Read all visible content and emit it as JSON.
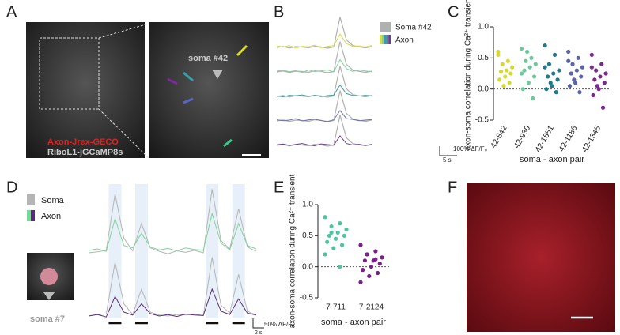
{
  "figure": {
    "panel_labels": [
      "A",
      "B",
      "C",
      "D",
      "E",
      "F"
    ],
    "panel_a": {
      "soma_label": "soma #42",
      "channel_labels": [
        "Axon-Jrex-GECO",
        "RiboL1-jGCaMP8s"
      ]
    },
    "panel_d_image": {
      "soma_label": "soma #7"
    }
  },
  "chart_data": [
    {
      "type": "line",
      "legend": [
        "Soma #42",
        "Axon"
      ],
      "scale_bar_x": "5 s",
      "scale_bar_y": "100% ΔF/F₀",
      "x": [
        0,
        3,
        6,
        9,
        12,
        15,
        18,
        21,
        24,
        27,
        30,
        33,
        36,
        39,
        42,
        45
      ],
      "soma": {
        "color": "#b0b0b0",
        "values": [
          0,
          5,
          -3,
          4,
          2,
          -2,
          6,
          3,
          -4,
          2,
          160,
          40,
          10,
          3,
          -2,
          4
        ]
      },
      "series": [
        {
          "color": "#d4d84a",
          "values": [
            8,
            2,
            10,
            -4,
            6,
            3,
            12,
            -2,
            5,
            9,
            70,
            20,
            6,
            8,
            2,
            10
          ]
        },
        {
          "color": "#7fd49a",
          "values": [
            4,
            9,
            1,
            7,
            -3,
            10,
            2,
            6,
            11,
            0,
            65,
            18,
            3,
            9,
            5,
            1
          ]
        },
        {
          "color": "#3f9c9c",
          "values": [
            2,
            -2,
            6,
            3,
            8,
            1,
            5,
            -1,
            4,
            7,
            60,
            15,
            5,
            2,
            6,
            3
          ]
        },
        {
          "color": "#6a72a8",
          "values": [
            6,
            1,
            4,
            12,
            0,
            5,
            9,
            2,
            -3,
            6,
            55,
            12,
            8,
            1,
            4,
            7
          ]
        },
        {
          "color": "#6b3f8a",
          "values": [
            3,
            7,
            0,
            5,
            10,
            2,
            -2,
            8,
            4,
            1,
            50,
            10,
            2,
            6,
            0,
            5
          ]
        }
      ]
    },
    {
      "type": "strip",
      "ylabel": "axon-soma correlation during Ca²⁺ transient",
      "xlabel": "soma - axon pair",
      "categories": [
        "42-842",
        "42-930",
        "42-1651",
        "42-1186",
        "42-1345"
      ],
      "colors": [
        "#d9d82c",
        "#6cc99a",
        "#1f7a8c",
        "#5a64a8",
        "#7a2a8c"
      ],
      "values": [
        [
          0.55,
          0.45,
          0.4,
          0.35,
          0.3,
          0.28,
          0.25,
          0.2,
          0.15,
          0.1,
          0.05,
          0.6
        ],
        [
          0.65,
          0.5,
          0.45,
          0.4,
          0.35,
          0.3,
          0.2,
          0.1,
          0.0,
          -0.15,
          0.6,
          0.25
        ],
        [
          0.7,
          0.55,
          0.4,
          0.3,
          0.25,
          0.2,
          0.15,
          0.05,
          0.0,
          -0.05,
          0.1,
          0.35
        ],
        [
          0.6,
          0.5,
          0.4,
          0.35,
          0.3,
          0.25,
          0.2,
          0.1,
          0.05,
          -0.05,
          0.15,
          0.45
        ],
        [
          0.55,
          0.4,
          0.3,
          0.25,
          0.2,
          0.15,
          0.1,
          0.0,
          -0.1,
          -0.3,
          0.05,
          0.35
        ]
      ],
      "ylim": [
        -0.5,
        1.0
      ],
      "yticks": [
        -0.5,
        {
          "value": 0,
          "label": "0.0"
        },
        0.5,
        {
          "value": 1,
          "label": "1.0"
        }
      ]
    },
    {
      "type": "line",
      "legend": [
        "Soma",
        "Axon"
      ],
      "scale_bar_x": "2 s",
      "scale_bar_y": "50% ΔF/F₀",
      "x": [
        0,
        1,
        2,
        3,
        4,
        5,
        6,
        7,
        8,
        9,
        10,
        11,
        12,
        13,
        14,
        15,
        16,
        17,
        18,
        19
      ],
      "series": [
        {
          "color": "#b5b5b5",
          "values": [
            0,
            2,
            5,
            120,
            30,
            4,
            60,
            10,
            3,
            -2,
            4,
            1,
            5,
            0,
            130,
            25,
            8,
            90,
            12,
            3
          ]
        },
        {
          "color": "#7fd49a",
          "values": [
            5,
            8,
            3,
            70,
            15,
            10,
            40,
            12,
            6,
            9,
            4,
            10,
            7,
            5,
            80,
            20,
            6,
            60,
            15,
            8
          ]
        },
        {
          "color": "#b5b5b5",
          "values": [
            0,
            3,
            4,
            110,
            25,
            3,
            55,
            8,
            2,
            0,
            3,
            2,
            4,
            1,
            120,
            22,
            6,
            85,
            10,
            2
          ]
        },
        {
          "color": "#5a2a7a",
          "values": [
            0,
            3,
            -2,
            40,
            8,
            2,
            25,
            5,
            0,
            3,
            -1,
            4,
            2,
            1,
            55,
            10,
            3,
            35,
            6,
            2
          ]
        }
      ]
    },
    {
      "type": "strip",
      "ylabel": "axon-soma correlation during Ca²⁺ transient",
      "xlabel": "soma - axon pair",
      "categories": [
        "7-711",
        "7-2124"
      ],
      "colors": [
        "#4fc4a0",
        "#7a1f8c"
      ],
      "values": [
        [
          0.8,
          0.7,
          0.65,
          0.6,
          0.55,
          0.5,
          0.5,
          0.45,
          0.4,
          0.35,
          0.3,
          0.2,
          0.0,
          0.55
        ],
        [
          0.35,
          0.25,
          0.2,
          0.15,
          0.1,
          0.1,
          0.05,
          0.0,
          -0.05,
          -0.1,
          -0.15,
          -0.25,
          0.12,
          0.2
        ]
      ],
      "ylim": [
        -0.5,
        1.0
      ],
      "yticks": [
        -0.5,
        {
          "value": 0,
          "label": "0.0"
        },
        0.5,
        {
          "value": 1,
          "label": "1.0"
        }
      ]
    }
  ]
}
